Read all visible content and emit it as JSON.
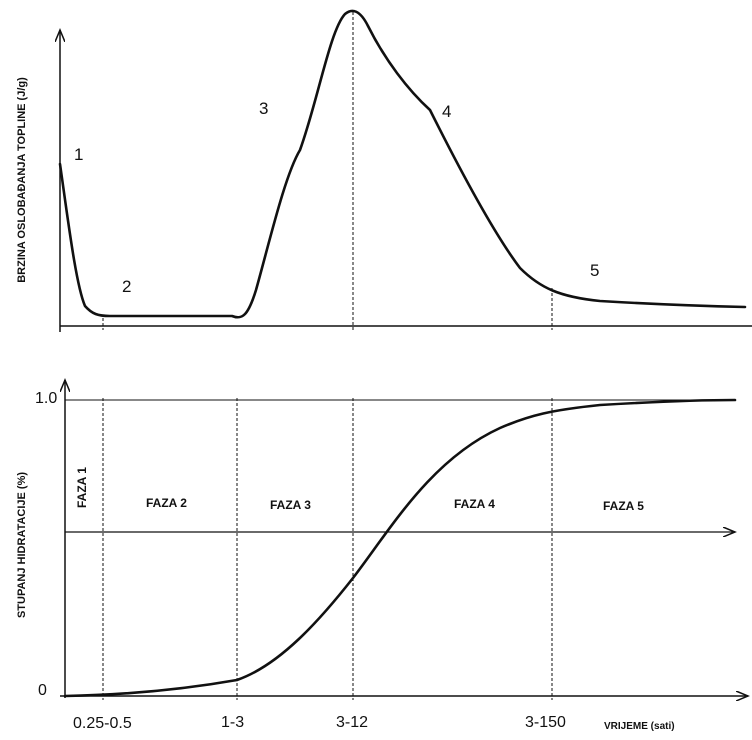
{
  "top_panel": {
    "y_axis_label": "BRZINA OSLOBAĐANJA TOPLINE (J/g)",
    "stage_labels": [
      "1",
      "2",
      "3",
      "4",
      "5"
    ]
  },
  "bottom_panel": {
    "y_axis_label": "STUPANJ HIDRATACIJE (%)",
    "y_tick_top": "1.0",
    "y_tick_bottom": "0",
    "phase_labels": [
      "FAZA 1",
      "FAZA 2",
      "FAZA 3",
      "FAZA 4",
      "FAZA 5"
    ],
    "x_tick_labels": [
      "0.25-0.5",
      "1-3",
      "3-12",
      "3-150"
    ],
    "x_axis_label": "VRIJEME (sati)"
  }
}
